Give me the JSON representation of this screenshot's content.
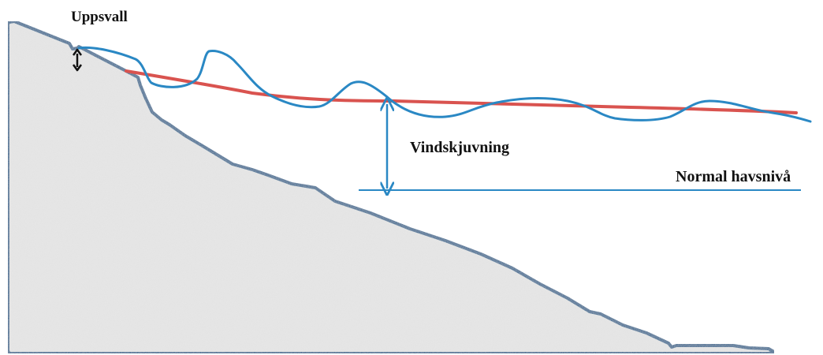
{
  "labels": {
    "setup": "Uppsvall",
    "wind_setup": "Vindskjuvning",
    "normal_sea_level": "Normal havsnivå"
  },
  "colors": {
    "ground_fill": "#e3e3e3",
    "ground_outline": "#1f5f8b",
    "wave_line": "#2a88c4",
    "mean_water_line": "#d9534f",
    "normal_level_line": "#2a88c4",
    "wind_setup_arrow": "#2a88c4",
    "setup_arrow": "#111111"
  }
}
